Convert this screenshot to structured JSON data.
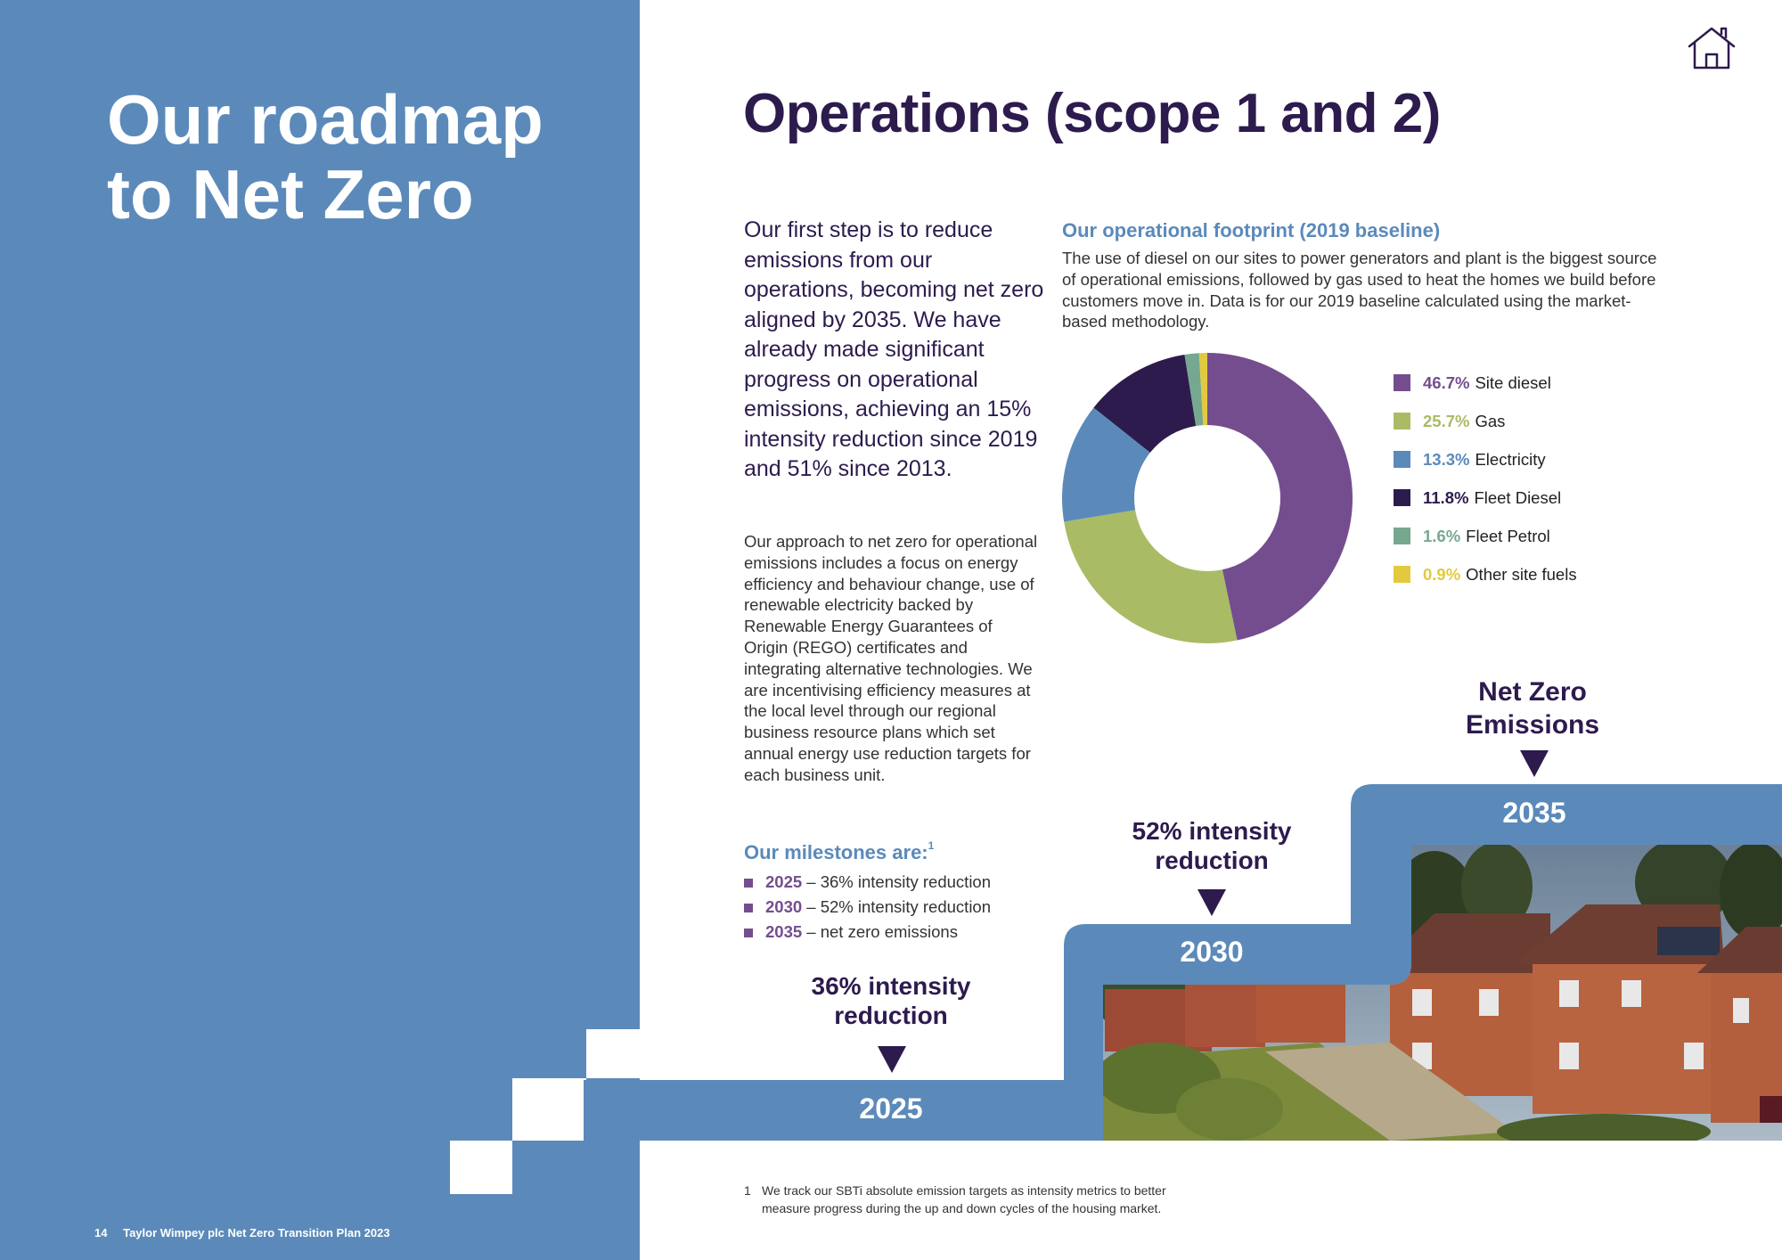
{
  "left": {
    "title": "Our roadmap to Net Zero",
    "footer_page": "14",
    "footer_doc": "Taylor Wimpey plc Net Zero Transition Plan 2023"
  },
  "header": {
    "title": "Operations (scope 1 and 2)",
    "home_icon": "home-icon"
  },
  "intro": {
    "lead": "Our first step is to reduce emissions from our operations, becoming net zero aligned by 2035. We have already made significant progress on operational emissions, achieving an 15% intensity reduction since 2019 and 51% since 2013.",
    "body": "Our approach to net zero for operational emissions includes a focus on energy efficiency and behaviour change, use of renewable electricity backed by Renewable Energy Guarantees of Origin (REGO) certificates and integrating alternative technologies. We are incentivising efficiency measures at the local level through our regional business resource plans which set annual energy use reduction targets for each business unit."
  },
  "milestones": {
    "heading": "Our milestones are:",
    "footnote_ref": "1",
    "items": [
      {
        "year": "2025",
        "text": " – 36% intensity reduction"
      },
      {
        "year": "2030",
        "text": " – 52% intensity reduction"
      },
      {
        "year": "2035",
        "text": " – net zero emissions"
      }
    ]
  },
  "footprint": {
    "heading": "Our operational footprint (2019 baseline)",
    "text": "The use of diesel on our sites to power generators and plant is the biggest source of operational emissions, followed by gas used to heat the homes we build before customers move in. Data is for our 2019 baseline calculated using the market-based methodology."
  },
  "chart_data": {
    "type": "pie",
    "donut": true,
    "legend_position": "right",
    "slices": [
      {
        "label": "Site diesel",
        "pct_label": "46.7%",
        "value": 46.7,
        "color": "#744d8f"
      },
      {
        "label": "Gas",
        "pct_label": "25.7%",
        "value": 25.7,
        "color": "#a9bb65"
      },
      {
        "label": "Electricity",
        "pct_label": "13.3%",
        "value": 13.3,
        "color": "#5b8aba"
      },
      {
        "label": "Fleet Diesel",
        "pct_label": "11.8%",
        "value": 11.8,
        "color": "#2d1b4e"
      },
      {
        "label": "Fleet Petrol",
        "pct_label": "1.6%",
        "value": 1.6,
        "color": "#76a890"
      },
      {
        "label": "Other site fuels",
        "pct_label": "0.9%",
        "value": 0.9,
        "color": "#e2c93f"
      }
    ]
  },
  "roadmap": {
    "steps": [
      {
        "year": "2025",
        "label": "36% intensity reduction"
      },
      {
        "year": "2030",
        "label": "52% intensity reduction"
      },
      {
        "year": "2035",
        "label": "Net Zero Emissions"
      }
    ]
  },
  "footnote": {
    "num": "1",
    "text": "We track our SBTi absolute emission targets as intensity metrics to better measure progress during the up and down cycles of the housing market."
  },
  "colors": {
    "blue": "#5b8aba",
    "purple_dark": "#2d1b4e",
    "purple": "#744d8f"
  }
}
